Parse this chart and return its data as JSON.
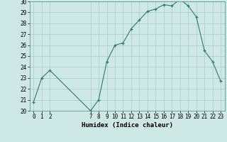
{
  "x": [
    0,
    1,
    2,
    7,
    8,
    9,
    10,
    11,
    12,
    13,
    14,
    15,
    16,
    17,
    18,
    19,
    20,
    21,
    22,
    23
  ],
  "y": [
    20.8,
    23.0,
    23.7,
    20.0,
    21.0,
    24.5,
    26.0,
    26.2,
    27.5,
    28.3,
    29.1,
    29.3,
    29.7,
    29.6,
    30.2,
    29.6,
    28.6,
    25.5,
    24.5,
    22.7
  ],
  "xlabel": "Humidex (Indice chaleur)",
  "xlim": [
    -0.5,
    23.5
  ],
  "ylim": [
    20,
    30
  ],
  "yticks": [
    20,
    21,
    22,
    23,
    24,
    25,
    26,
    27,
    28,
    29,
    30
  ],
  "xtick_positions": [
    0,
    1,
    2,
    7,
    8,
    9,
    10,
    11,
    12,
    13,
    14,
    15,
    16,
    17,
    18,
    19,
    20,
    21,
    22,
    23
  ],
  "xtick_labels": [
    "0",
    "1",
    "2",
    "7",
    "8",
    "9",
    "10",
    "11",
    "12",
    "13",
    "14",
    "15",
    "16",
    "17",
    "18",
    "19",
    "20",
    "21",
    "22",
    "23"
  ],
  "line_color": "#2e7d6e",
  "marker": "+",
  "bg_color": "#cde8e5",
  "grid_color": "#a8ccc9",
  "tick_label_fontsize": 5.5,
  "xlabel_fontsize": 6.5
}
